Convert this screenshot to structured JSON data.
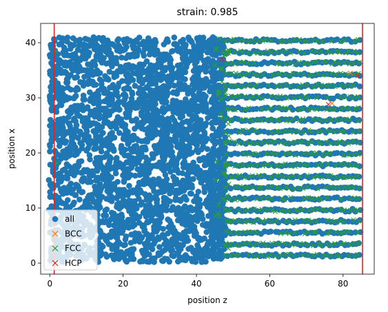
{
  "chart_data": {
    "type": "scatter",
    "title": "strain: 0.985",
    "xlabel": "position z",
    "ylabel": "position x",
    "xlim": [
      -2.5,
      88.5
    ],
    "ylim": [
      -2,
      43.5
    ],
    "xticks": [
      "0",
      "20",
      "40",
      "60",
      "80"
    ],
    "xtick_values": [
      0,
      20,
      40,
      60,
      80
    ],
    "yticks": [
      "0",
      "10",
      "20",
      "30",
      "40"
    ],
    "ytick_values": [
      0,
      10,
      20,
      30,
      40
    ],
    "grid": false,
    "legend_placement": "lower-left",
    "disordered_region_z": [
      0,
      45
    ],
    "crystalline_region_z": [
      45,
      85
    ],
    "crystal_rows_x": [
      1.4,
      3.4,
      5.5,
      7.6,
      9.6,
      11.7,
      13.7,
      15.7,
      17.8,
      19.8,
      21.9,
      23.9,
      26.0,
      28.0,
      30.1,
      32.2,
      34.2,
      36.3,
      38.3,
      40.4
    ],
    "series": [
      {
        "name": "all",
        "marker": "circle",
        "color": "#1f77b4",
        "description_points": "dense atom positions filling z 0 to 85, x 0 to 41"
      },
      {
        "name": "BCC",
        "marker": "x",
        "color": "#ff7f0e",
        "points": [
          [
            77.0,
            29.0
          ],
          [
            82.0,
            34.5
          ]
        ]
      },
      {
        "name": "FCC",
        "marker": "x",
        "color": "#2ca02c",
        "points": "lattice sites in z 45 to 85 along crystal rows"
      },
      {
        "name": "HCP",
        "marker": "x",
        "color": "#d62728",
        "points": [
          [
            47.0,
            37.0
          ],
          [
            76.0,
            28.8
          ],
          [
            84.0,
            34.0
          ]
        ]
      }
    ],
    "vertical_lines": [
      {
        "x": 1.2,
        "color": "#d62728"
      },
      {
        "x": 85.3,
        "color": "#d62728"
      }
    ]
  }
}
